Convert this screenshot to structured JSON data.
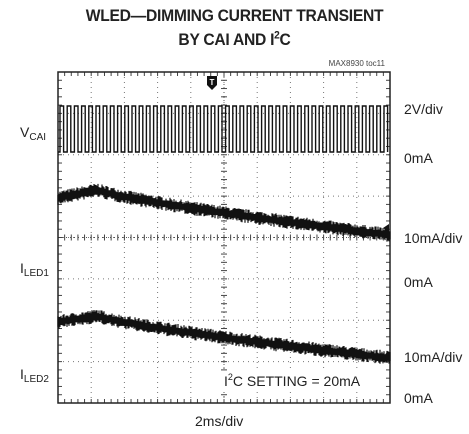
{
  "chart_data": {
    "type": "line",
    "title_line1": "WLED—DIMMING CURRENT TRANSIENT",
    "title_line2_prefix": "BY CAI AND I",
    "title_line2_sup": "2",
    "title_line2_suffix": "C",
    "doc_id": "MAX8930 toc11",
    "xlabel": "2ms/div",
    "grid": true,
    "divisions": {
      "x": 10,
      "y": 8
    },
    "channels": [
      {
        "name_base": "V",
        "name_sub": "CAI",
        "scale": "2V/div",
        "zero_label": "0mA"
      },
      {
        "name_base": "I",
        "name_sub": "LED1",
        "scale": "10mA/div",
        "zero_label": "0mA"
      },
      {
        "name_base": "I",
        "name_sub": "LED2",
        "scale": "10mA/div",
        "zero_label": "0mA"
      }
    ],
    "trigger_marker": "T",
    "annotation_prefix": "I",
    "annotation_sup": "2",
    "annotation_suffix": "C SETTING = 20mA"
  }
}
